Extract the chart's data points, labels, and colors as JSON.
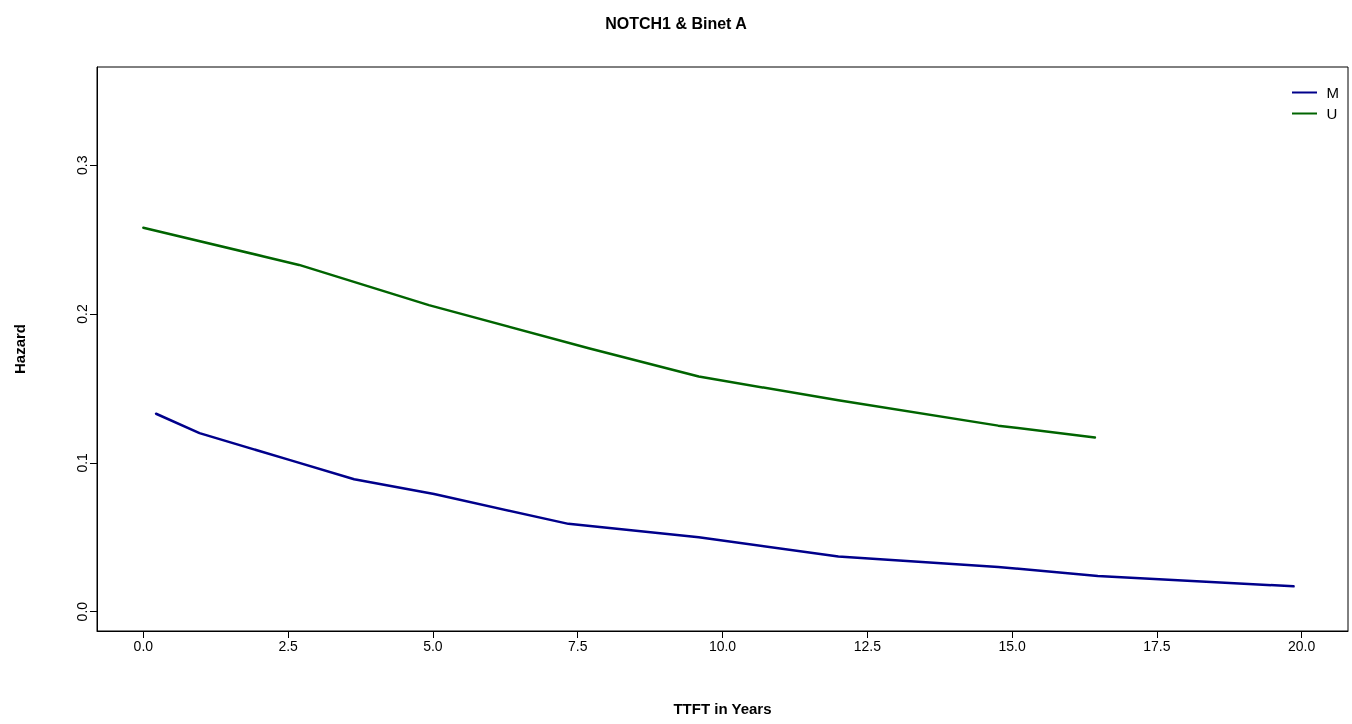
{
  "chart_data": {
    "type": "line",
    "title": "NOTCH1 & Binet A",
    "xlabel": "TTFT in Years",
    "ylabel": "Hazard",
    "series": [
      {
        "name": "M",
        "color": "#00008b",
        "x": [
          0.22,
          0.97,
          2.52,
          3.64,
          5.02,
          7.34,
          9.59,
          12.0,
          14.76,
          16.48,
          19.86
        ],
        "values": [
          0.133,
          0.12,
          0.102,
          0.089,
          0.079,
          0.059,
          0.05,
          0.037,
          0.03,
          0.024,
          0.017
        ]
      },
      {
        "name": "U",
        "color": "#006400",
        "x": [
          0,
          2.69,
          4.93,
          7.69,
          9.59,
          12.0,
          14.76,
          16.43
        ],
        "values": [
          0.258,
          0.233,
          0.206,
          0.177,
          0.158,
          0.142,
          0.125,
          0.117
        ]
      }
    ],
    "xlim": [
      -0.8,
      20.8
    ],
    "ylim": [
      -0.013,
      0.366
    ],
    "xticks": [
      {
        "value": 0,
        "label": "0.0"
      },
      2.5,
      {
        "value": 5,
        "label": "5.0"
      },
      7.5,
      {
        "value": 10,
        "label": "10.0"
      },
      12.5,
      {
        "value": 15,
        "label": "15.0"
      },
      17.5,
      {
        "value": 20,
        "label": "20.0"
      }
    ],
    "yticks": [
      {
        "value": 0,
        "label": "0.0"
      },
      0.1,
      0.2,
      0.3
    ],
    "legend": "top right",
    "grid": false,
    "marker": "none",
    "line_style": "solid"
  }
}
